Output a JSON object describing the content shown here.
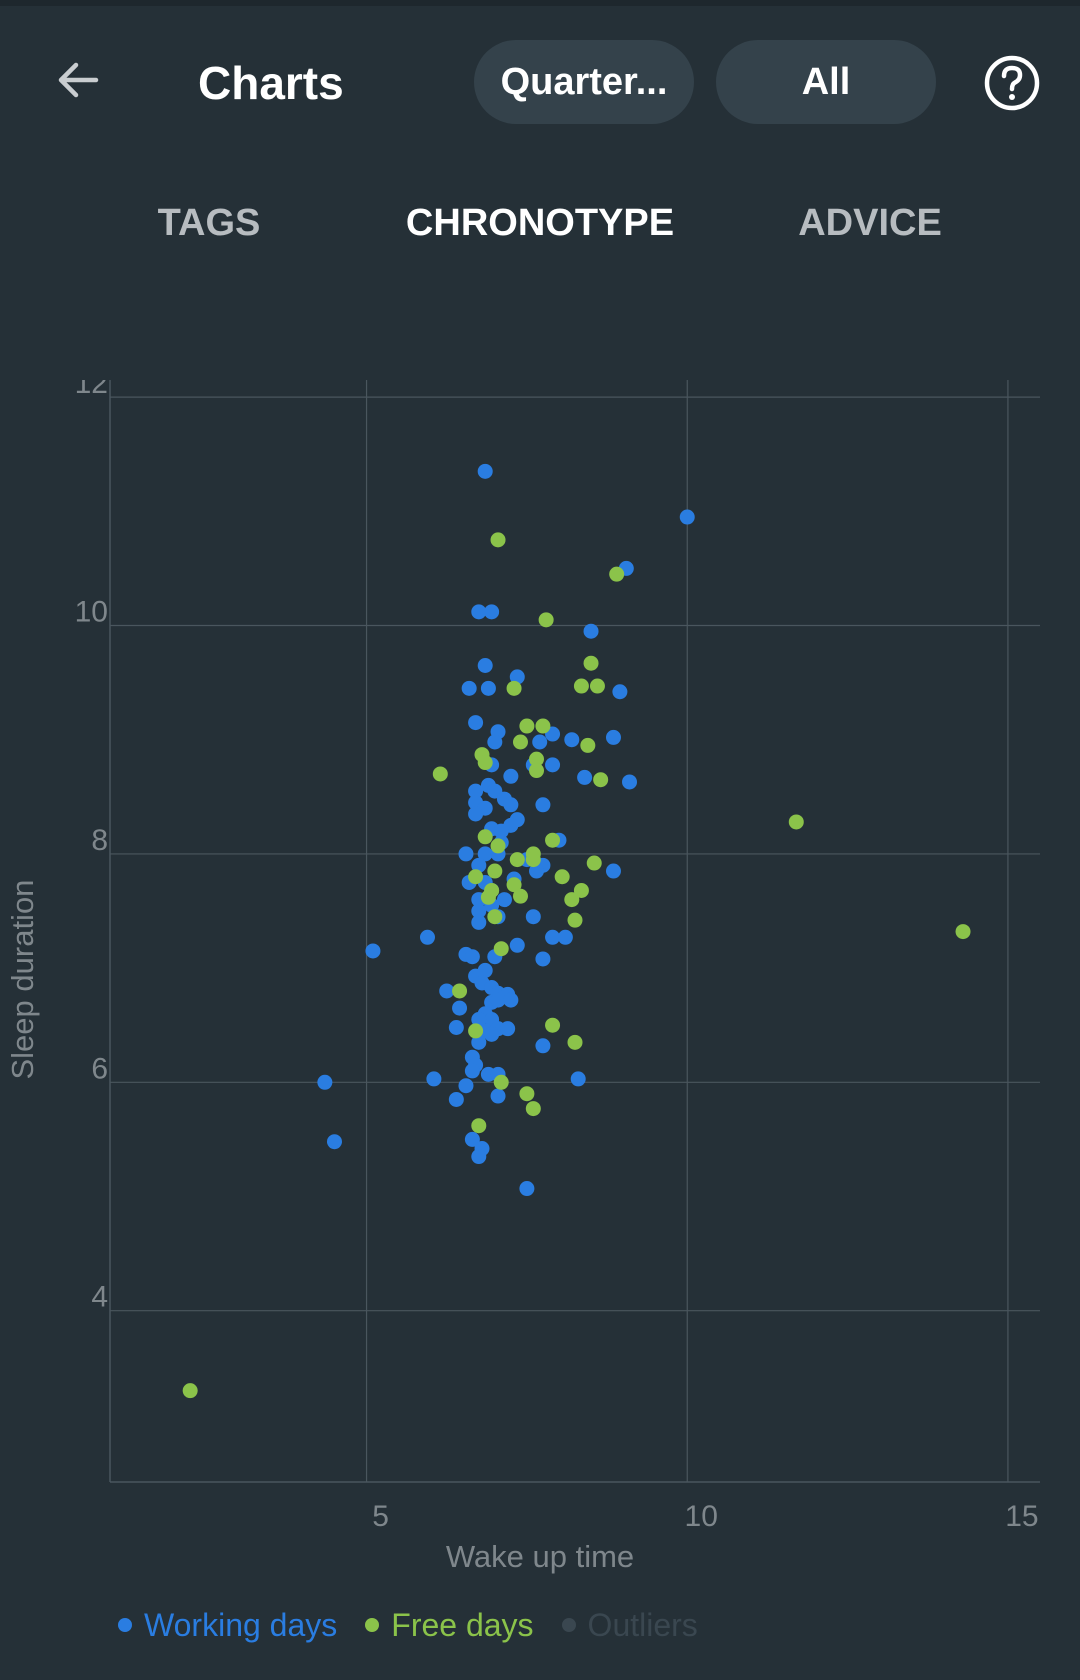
{
  "header": {
    "title": "Charts",
    "period_label": "Quarter...",
    "filter_label": "All",
    "back_icon": "arrow-left-icon",
    "help_icon": "question-circle-icon"
  },
  "tabs": [
    {
      "label": "TAGS",
      "active": false
    },
    {
      "label": "CHRONOTYPE",
      "active": true
    },
    {
      "label": "ADVICE",
      "active": false
    }
  ],
  "colors": {
    "background": "#253037",
    "working": "#2a7de1",
    "free": "#8bc34a",
    "outliers": "#3a4750",
    "grid": "#4a565e",
    "axis_text": "#7f878c"
  },
  "legend": {
    "working": "Working days",
    "free": "Free days",
    "outliers": "Outliers"
  },
  "chart_data": {
    "type": "scatter",
    "xlabel": "Wake up time",
    "ylabel": "Sleep duration",
    "xlim": [
      1,
      15.5
    ],
    "ylim": [
      2.5,
      12.15
    ],
    "xticks": [
      5,
      10,
      15
    ],
    "yticks": [
      4,
      6,
      8,
      10,
      12
    ],
    "grid": true,
    "legend_position": "bottom-left",
    "series": [
      {
        "name": "Working days",
        "color": "#2a7de1",
        "points": [
          [
            6.85,
            11.35
          ],
          [
            10.0,
            10.95
          ],
          [
            9.05,
            10.5
          ],
          [
            6.75,
            10.12
          ],
          [
            6.95,
            10.12
          ],
          [
            8.5,
            9.95
          ],
          [
            6.85,
            9.65
          ],
          [
            7.35,
            9.55
          ],
          [
            6.6,
            9.45
          ],
          [
            6.9,
            9.45
          ],
          [
            8.95,
            9.42
          ],
          [
            6.7,
            9.15
          ],
          [
            7.05,
            9.07
          ],
          [
            7.9,
            9.05
          ],
          [
            7.7,
            8.98
          ],
          [
            8.2,
            9.0
          ],
          [
            8.85,
            9.02
          ],
          [
            7.0,
            8.98
          ],
          [
            6.95,
            8.78
          ],
          [
            7.6,
            8.78
          ],
          [
            7.9,
            8.78
          ],
          [
            7.25,
            8.68
          ],
          [
            8.4,
            8.67
          ],
          [
            9.1,
            8.63
          ],
          [
            6.9,
            8.6
          ],
          [
            7.0,
            8.55
          ],
          [
            6.7,
            8.55
          ],
          [
            7.15,
            8.48
          ],
          [
            6.7,
            8.45
          ],
          [
            7.25,
            8.43
          ],
          [
            7.75,
            8.43
          ],
          [
            6.85,
            8.4
          ],
          [
            6.7,
            8.35
          ],
          [
            7.35,
            8.3
          ],
          [
            7.25,
            8.25
          ],
          [
            6.95,
            8.22
          ],
          [
            7.1,
            8.2
          ],
          [
            8.0,
            8.12
          ],
          [
            7.1,
            8.1
          ],
          [
            6.55,
            8.0
          ],
          [
            6.85,
            8.0
          ],
          [
            7.05,
            8.0
          ],
          [
            7.5,
            7.95
          ],
          [
            6.75,
            7.9
          ],
          [
            7.75,
            7.9
          ],
          [
            7.65,
            7.85
          ],
          [
            8.85,
            7.85
          ],
          [
            6.6,
            7.75
          ],
          [
            6.85,
            7.75
          ],
          [
            7.3,
            7.78
          ],
          [
            6.95,
            7.68
          ],
          [
            6.75,
            7.6
          ],
          [
            6.95,
            7.55
          ],
          [
            7.15,
            7.6
          ],
          [
            6.75,
            7.5
          ],
          [
            7.05,
            7.45
          ],
          [
            6.75,
            7.4
          ],
          [
            7.6,
            7.45
          ],
          [
            5.95,
            7.27
          ],
          [
            7.9,
            7.27
          ],
          [
            8.1,
            7.27
          ],
          [
            5.1,
            7.15
          ],
          [
            7.35,
            7.2
          ],
          [
            6.55,
            7.12
          ],
          [
            6.65,
            7.1
          ],
          [
            7.0,
            7.1
          ],
          [
            7.75,
            7.08
          ],
          [
            6.85,
            6.98
          ],
          [
            6.7,
            6.93
          ],
          [
            6.8,
            6.87
          ],
          [
            6.25,
            6.8
          ],
          [
            6.95,
            6.83
          ],
          [
            7.05,
            6.78
          ],
          [
            7.2,
            6.77
          ],
          [
            6.95,
            6.7
          ],
          [
            7.05,
            6.72
          ],
          [
            7.25,
            6.72
          ],
          [
            6.45,
            6.65
          ],
          [
            6.85,
            6.6
          ],
          [
            6.95,
            6.55
          ],
          [
            6.75,
            6.55
          ],
          [
            6.4,
            6.48
          ],
          [
            6.85,
            6.45
          ],
          [
            7.05,
            6.47
          ],
          [
            6.95,
            6.42
          ],
          [
            7.2,
            6.47
          ],
          [
            6.75,
            6.35
          ],
          [
            7.75,
            6.32
          ],
          [
            6.65,
            6.22
          ],
          [
            6.7,
            6.15
          ],
          [
            6.65,
            6.1
          ],
          [
            6.9,
            6.07
          ],
          [
            7.05,
            6.07
          ],
          [
            6.05,
            6.03
          ],
          [
            8.3,
            6.03
          ],
          [
            4.35,
            6.0
          ],
          [
            6.55,
            5.97
          ],
          [
            7.05,
            5.88
          ],
          [
            6.4,
            5.85
          ],
          [
            4.5,
            5.48
          ],
          [
            6.65,
            5.5
          ],
          [
            6.8,
            5.42
          ],
          [
            6.75,
            5.35
          ],
          [
            7.5,
            5.07
          ]
        ]
      },
      {
        "name": "Free days",
        "color": "#8bc34a",
        "points": [
          [
            7.05,
            10.75
          ],
          [
            8.9,
            10.45
          ],
          [
            7.8,
            10.05
          ],
          [
            8.5,
            9.67
          ],
          [
            8.35,
            9.47
          ],
          [
            8.6,
            9.47
          ],
          [
            7.3,
            9.45
          ],
          [
            7.5,
            9.12
          ],
          [
            7.75,
            9.12
          ],
          [
            7.4,
            8.98
          ],
          [
            8.45,
            8.95
          ],
          [
            6.8,
            8.87
          ],
          [
            6.85,
            8.8
          ],
          [
            7.65,
            8.83
          ],
          [
            7.65,
            8.73
          ],
          [
            6.15,
            8.7
          ],
          [
            8.65,
            8.65
          ],
          [
            11.7,
            8.28
          ],
          [
            6.85,
            8.15
          ],
          [
            7.9,
            8.12
          ],
          [
            7.05,
            8.07
          ],
          [
            7.6,
            8.0
          ],
          [
            7.6,
            7.95
          ],
          [
            7.35,
            7.95
          ],
          [
            8.55,
            7.92
          ],
          [
            7.0,
            7.85
          ],
          [
            6.7,
            7.8
          ],
          [
            8.05,
            7.8
          ],
          [
            7.3,
            7.73
          ],
          [
            6.95,
            7.68
          ],
          [
            8.35,
            7.68
          ],
          [
            6.9,
            7.62
          ],
          [
            7.4,
            7.63
          ],
          [
            8.2,
            7.6
          ],
          [
            7.0,
            7.45
          ],
          [
            8.25,
            7.42
          ],
          [
            14.3,
            7.32
          ],
          [
            7.1,
            7.17
          ],
          [
            6.45,
            6.8
          ],
          [
            7.9,
            6.5
          ],
          [
            6.7,
            6.45
          ],
          [
            8.25,
            6.35
          ],
          [
            7.1,
            6.0
          ],
          [
            7.5,
            5.9
          ],
          [
            7.6,
            5.77
          ],
          [
            6.75,
            5.62
          ],
          [
            2.25,
            3.3
          ]
        ]
      }
    ]
  }
}
